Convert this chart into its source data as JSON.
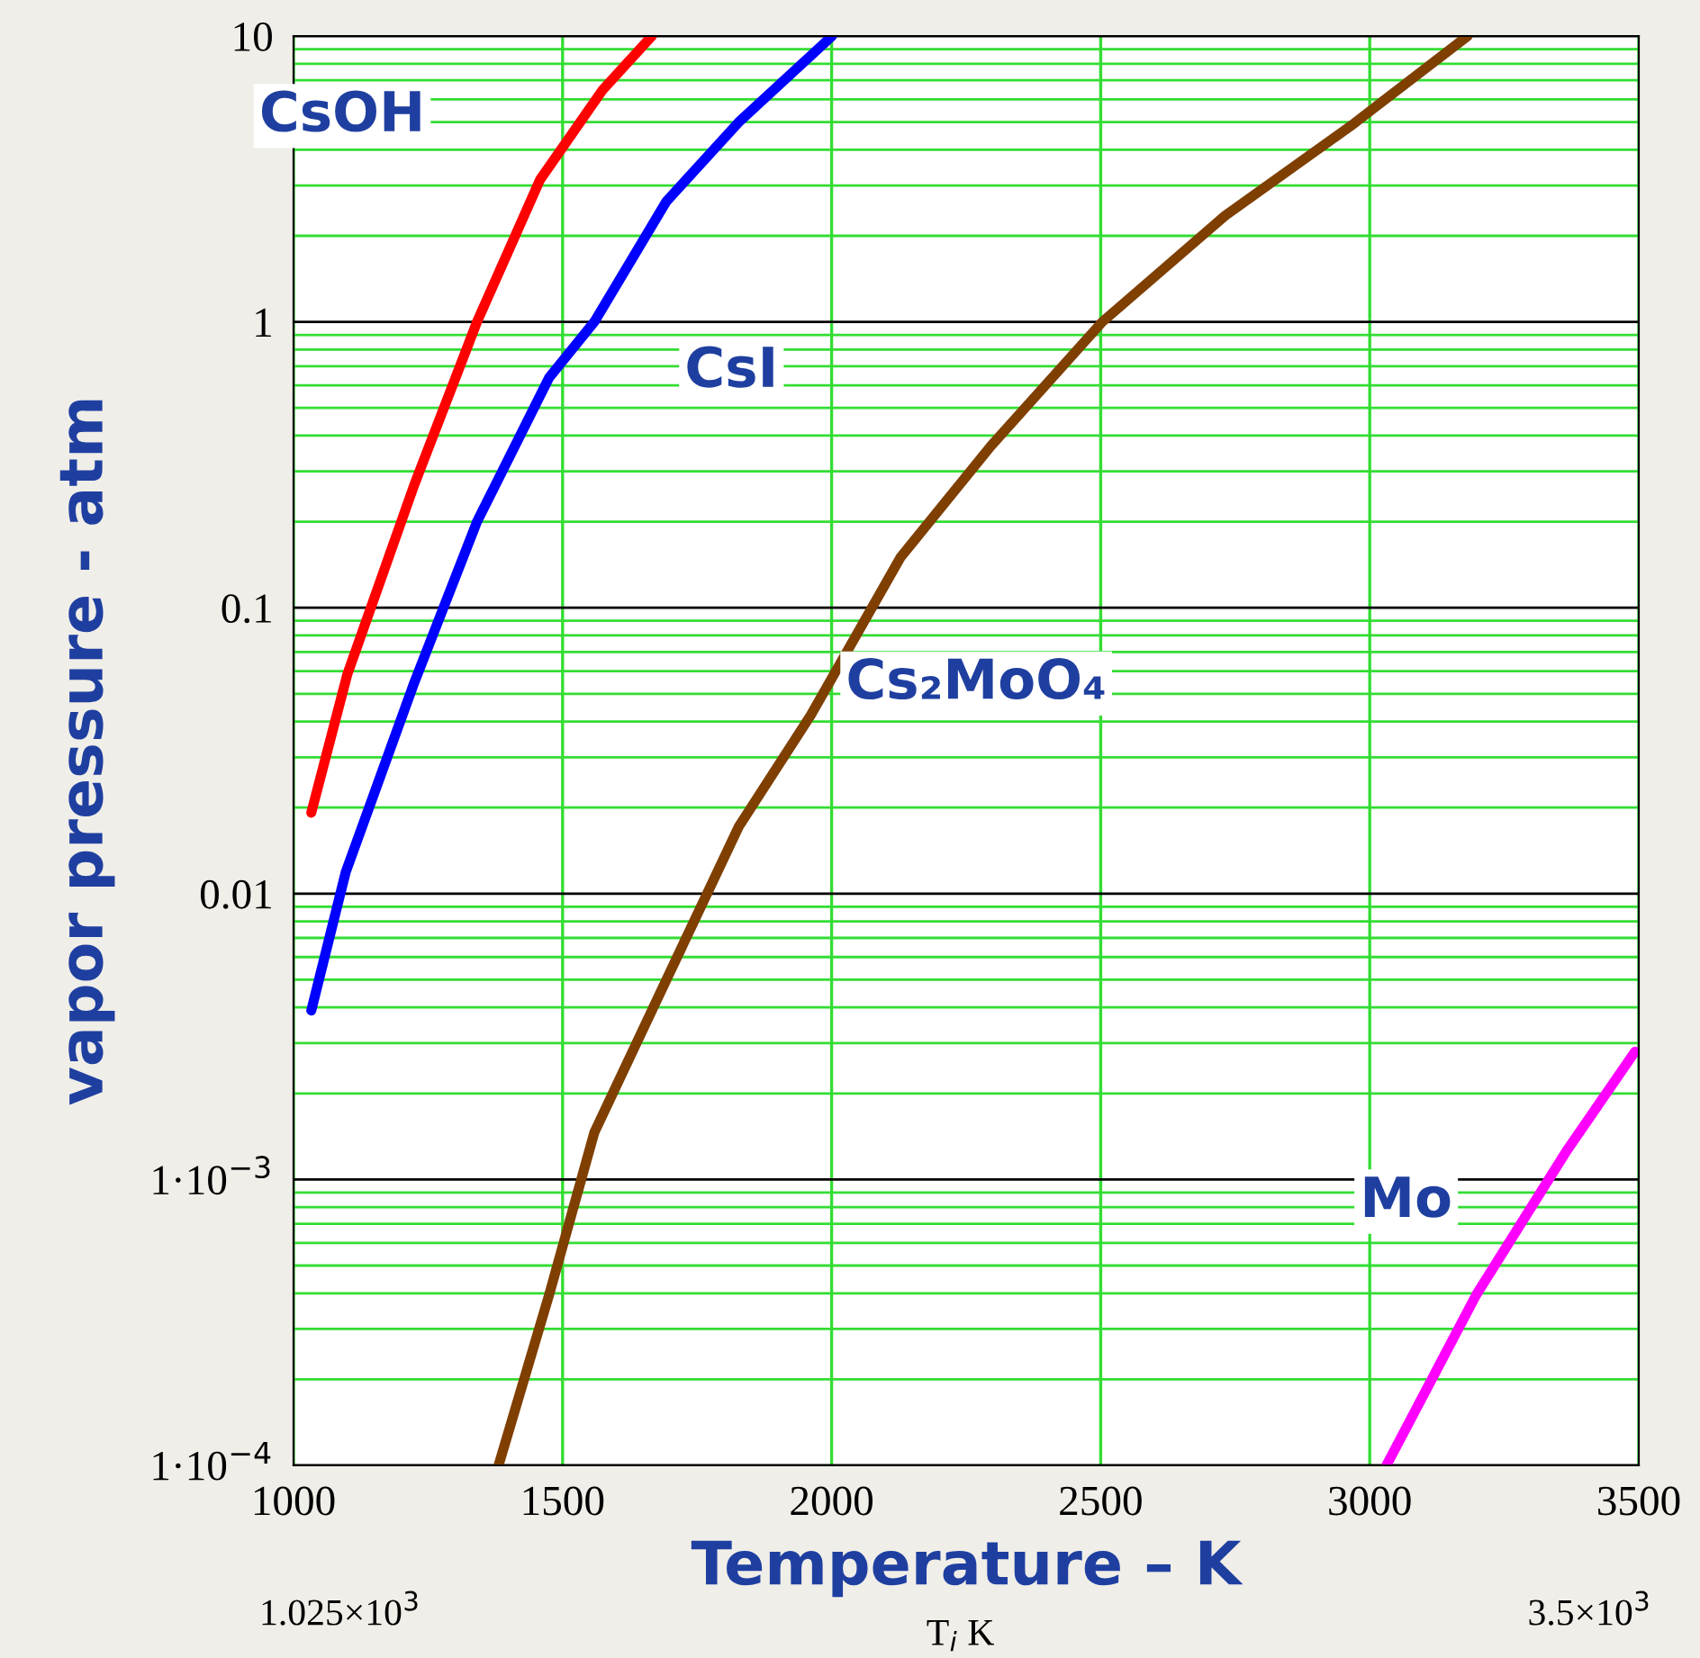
{
  "chart_data": {
    "type": "line",
    "xlabel": "Temperature – K",
    "ylabel": "vapor pressure - atm",
    "log": "y",
    "grid": true,
    "legend": false,
    "marker": "none",
    "line_style": "solid",
    "xlim": [
      1000,
      3500
    ],
    "xticks": [
      1000,
      1500,
      2000,
      2500,
      3000,
      3500
    ],
    "ylim": [
      0.0001,
      10
    ],
    "yticks": [
      {
        "value": 0.0001,
        "label": "1·10$^{−4}$"
      },
      {
        "value": 0.0002,
        "label": null
      },
      {
        "value": 0.0003,
        "label": null
      },
      {
        "value": 0.0004,
        "label": null
      },
      {
        "value": 0.0005,
        "label": null
      },
      {
        "value": 0.0006,
        "label": null
      },
      {
        "value": 0.0007,
        "label": null
      },
      {
        "value": 0.0008,
        "label": null
      },
      {
        "value": 0.0009,
        "label": null
      },
      {
        "value": 0.001,
        "label": "1·10$^{−3}$"
      },
      {
        "value": 0.002,
        "label": null
      },
      {
        "value": 0.003,
        "label": null
      },
      {
        "value": 0.004,
        "label": null
      },
      {
        "value": 0.005,
        "label": null
      },
      {
        "value": 0.006,
        "label": null
      },
      {
        "value": 0.007,
        "label": null
      },
      {
        "value": 0.008,
        "label": null
      },
      {
        "value": 0.009,
        "label": null
      },
      0.01,
      {
        "value": 0.02,
        "label": null
      },
      {
        "value": 0.03,
        "label": null
      },
      {
        "value": 0.04,
        "label": null
      },
      {
        "value": 0.05,
        "label": null
      },
      {
        "value": 0.06,
        "label": null
      },
      {
        "value": 0.07,
        "label": null
      },
      {
        "value": 0.08,
        "label": null
      },
      {
        "value": 0.09,
        "label": null
      },
      0.1,
      {
        "value": 0.2,
        "label": null
      },
      {
        "value": 0.3,
        "label": null
      },
      {
        "value": 0.4,
        "label": null
      },
      {
        "value": 0.5,
        "label": null
      },
      {
        "value": 0.6,
        "label": null
      },
      {
        "value": 0.7,
        "label": null
      },
      {
        "value": 0.8,
        "label": null
      },
      {
        "value": 0.9,
        "label": null
      },
      1,
      {
        "value": 2,
        "label": null
      },
      {
        "value": 3,
        "label": null
      },
      {
        "value": 4,
        "label": null
      },
      {
        "value": 5,
        "label": null
      },
      {
        "value": 6,
        "label": null
      },
      {
        "value": 7,
        "label": null
      },
      {
        "value": 8,
        "label": null
      },
      {
        "value": 9,
        "label": null
      },
      10
    ],
    "series": [
      {
        "name": "CsOH",
        "color": "#ff0000",
        "x": [
          1033,
          1100,
          1224,
          1341,
          1458,
          1575,
          1666
        ],
        "values": [
          0.0192,
          0.0585,
          0.268,
          1,
          3.14,
          6.5,
          10
        ]
      },
      {
        "name": "CsI",
        "color": "#0000ff",
        "x": [
          1033,
          1097,
          1224,
          1341,
          1475,
          1559,
          1693,
          1827,
          2001
        ],
        "values": [
          0.0039,
          0.0119,
          0.0545,
          0.2,
          0.638,
          1,
          2.64,
          4.99,
          10
        ]
      },
      {
        "name": "Cs₂MoO₄",
        "color": "#7f3f00",
        "x": [
          1381,
          1475,
          1559,
          1693,
          1827,
          1961,
          2128,
          2296,
          2503,
          2731,
          2965,
          3182
        ],
        "values": [
          0.0001,
          0.000395,
          0.00146,
          0.005,
          0.0171,
          0.042,
          0.15,
          0.368,
          1,
          2.35,
          4.85,
          10
        ]
      },
      {
        "name": "Mo",
        "color": "#ff00ff",
        "x": [
          3031,
          3198,
          3366,
          3493
        ],
        "values": [
          0.0001,
          0.000395,
          0.00126,
          0.0028
        ]
      }
    ],
    "annotations": [
      "1.025×10$^{3}$",
      "T$_{i}$ K",
      "3.5×10$^{3}$"
    ]
  }
}
